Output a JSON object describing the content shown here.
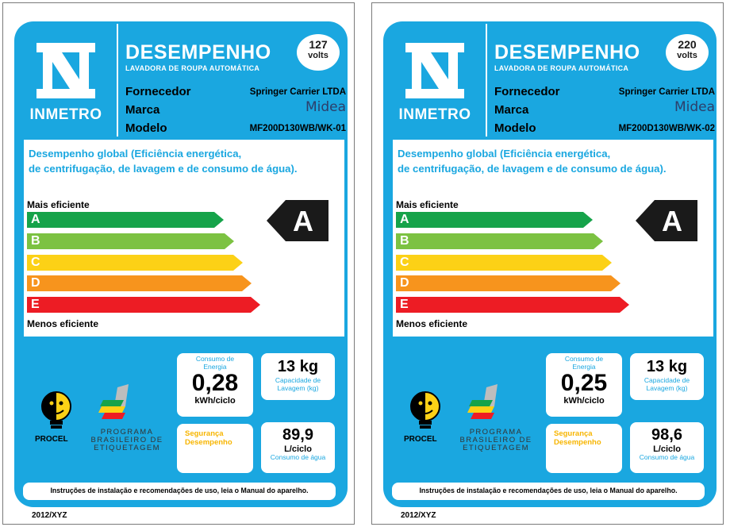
{
  "labels": [
    {
      "inmetro": "INMETRO",
      "title": "DESEMPENHO",
      "subtitle": "LAVADORA DE ROUPA AUTOMÁTICA",
      "voltage_value": "127",
      "voltage_unit": "volts",
      "fornecedor_label": "Fornecedor",
      "fornecedor": "Springer Carrier LTDA",
      "marca_label": "Marca",
      "marca": "Midea",
      "modelo_label": "Modelo",
      "modelo": "MF200D130WB/WK-01",
      "description_line1": "Desempenho global (Eficiência energética,",
      "description_line2": "de centrifugação, de lavagem e de consumo de água).",
      "mais_eficiente": "Mais eficiente",
      "menos_eficiente": "Menos eficiente",
      "classes": [
        "A",
        "B",
        "C",
        "D",
        "E"
      ],
      "rating": "A",
      "consumo_label_line1": "Consumo de",
      "consumo_label_line2": "Energia",
      "consumo_value": "0,28",
      "consumo_unit": "kWh/ciclo",
      "capacidade_value": "13 kg",
      "capacidade_label_line1": "Capacidade de",
      "capacidade_label_line2": "Lavagem (kg)",
      "seguranca_line1": "Segurança",
      "seguranca_line2": "Desempenho",
      "agua_value": "89,9",
      "agua_unit": "L/ciclo",
      "agua_label": "Consumo de água",
      "procel": "PROCEL",
      "pbe_line1": "PROGRAMA",
      "pbe_line2": "BRASILEIRO DE",
      "pbe_line3": "ETIQUETAGEM",
      "instructions": "Instruções de instalação e recomendações de uso, leia o Manual do aparelho.",
      "year": "2012/XYZ"
    },
    {
      "inmetro": "INMETRO",
      "title": "DESEMPENHO",
      "subtitle": "LAVADORA DE ROUPA AUTOMÁTICA",
      "voltage_value": "220",
      "voltage_unit": "volts",
      "fornecedor_label": "Fornecedor",
      "fornecedor": "Springer Carrier LTDA",
      "marca_label": "Marca",
      "marca": "Midea",
      "modelo_label": "Modelo",
      "modelo": "MF200D130WB/WK-02",
      "description_line1": "Desempenho global (Eficiência energética,",
      "description_line2": "de centrifugação, de lavagem e de consumo de água).",
      "mais_eficiente": "Mais eficiente",
      "menos_eficiente": "Menos eficiente",
      "classes": [
        "A",
        "B",
        "C",
        "D",
        "E"
      ],
      "rating": "A",
      "consumo_label_line1": "Consumo de",
      "consumo_label_line2": "Energia",
      "consumo_value": "0,25",
      "consumo_unit": "kWh/ciclo",
      "capacidade_value": "13 kg",
      "capacidade_label_line1": "Capacidade de",
      "capacidade_label_line2": "Lavagem (kg)",
      "seguranca_line1": "Segurança",
      "seguranca_line2": "Desempenho",
      "agua_value": "98,6",
      "agua_unit": "L/ciclo",
      "agua_label": "Consumo de água",
      "procel": "PROCEL",
      "pbe_line1": "PROGRAMA",
      "pbe_line2": "BRASILEIRO DE",
      "pbe_line3": "ETIQUETAGEM",
      "instructions": "Instruções de instalação e recomendações de uso, leia o Manual do aparelho.",
      "year": "2012/XYZ"
    }
  ],
  "colors": {
    "brand_blue": "#1aa7e0",
    "class_a": "#16a34a",
    "class_b": "#7cc242",
    "class_c": "#fcd116",
    "class_d": "#f7941d",
    "class_e": "#ed1c24",
    "rating_black": "#1a1a1a",
    "seguranca_yellow": "#f7b500"
  }
}
